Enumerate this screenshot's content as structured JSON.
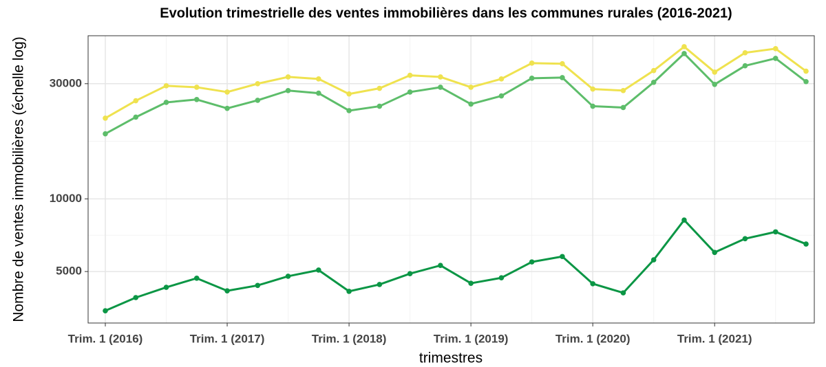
{
  "chart_data": {
    "type": "line",
    "title": "Evolution trimestrielle des ventes immobilières dans les communes rurales (2016-2021)",
    "x_label": "trimestres",
    "y_label": "Nombre de ventes immobilières (échelle log)",
    "categories": [
      "Trim. 1 (2016)",
      null,
      null,
      null,
      "Trim. 1 (2017)",
      null,
      null,
      null,
      "Trim. 1 (2018)",
      null,
      null,
      null,
      "Trim. 1 (2019)",
      null,
      null,
      null,
      "Trim. 1 (2020)",
      null,
      null,
      null,
      "Trim. 1 (2021)",
      null,
      null,
      null
    ],
    "series": [
      {
        "color": "#efe24f",
        "values": [
          21600,
          25500,
          29400,
          29000,
          27700,
          30000,
          32000,
          31400,
          27200,
          28700,
          32500,
          32000,
          29000,
          31400,
          36500,
          36300,
          28500,
          28100,
          34000,
          42700,
          33500,
          40300,
          41900,
          33800
        ]
      },
      {
        "color": "#5dbd6a",
        "values": [
          18600,
          21800,
          25100,
          25800,
          23700,
          25600,
          28100,
          27400,
          23200,
          24200,
          27700,
          29000,
          24700,
          26700,
          31600,
          31800,
          24200,
          23900,
          30400,
          40000,
          29800,
          35600,
          38200,
          30600
        ]
      },
      {
        "color": "#0b9645",
        "values": [
          3440,
          3900,
          4300,
          4690,
          4160,
          4380,
          4780,
          5070,
          4140,
          4420,
          4900,
          5300,
          4470,
          4710,
          5480,
          5770,
          4450,
          4080,
          5590,
          8170,
          6000,
          6840,
          7300,
          6500
        ]
      }
    ],
    "ylim": [
      3060,
      47400
    ],
    "yticks": [
      5000,
      10000,
      30000
    ],
    "log_y": true,
    "grid": true
  }
}
